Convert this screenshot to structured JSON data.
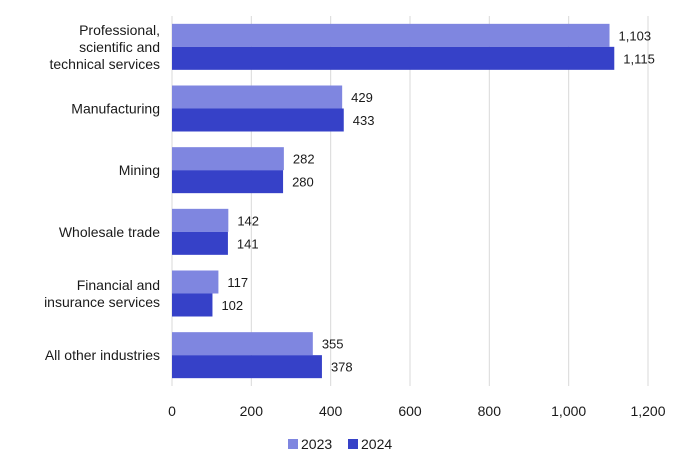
{
  "chart_data": {
    "type": "bar",
    "orientation": "horizontal",
    "categories": [
      [
        "Professional,",
        "scientific and",
        "technical services"
      ],
      [
        "Manufacturing"
      ],
      [
        "Mining"
      ],
      [
        "Wholesale trade"
      ],
      [
        "Financial and",
        "insurance services"
      ],
      [
        "All other industries"
      ]
    ],
    "series": [
      {
        "name": "2023",
        "color": "#7f86e0",
        "values": [
          1103,
          429,
          282,
          142,
          117,
          355
        ],
        "labels": [
          "1,103",
          "429",
          "282",
          "142",
          "117",
          "355"
        ]
      },
      {
        "name": "2024",
        "color": "#3641c8",
        "values": [
          1115,
          433,
          280,
          141,
          102,
          378
        ],
        "labels": [
          "1,115",
          "433",
          "280",
          "141",
          "102",
          "378"
        ]
      }
    ],
    "xlim": [
      0,
      1200
    ],
    "xticks": [
      0,
      200,
      400,
      600,
      800,
      1000,
      1200
    ],
    "xtick_labels": [
      "0",
      "200",
      "400",
      "600",
      "800",
      "1,000",
      "1,200"
    ],
    "grid": "vertical",
    "legend": "bottom"
  }
}
